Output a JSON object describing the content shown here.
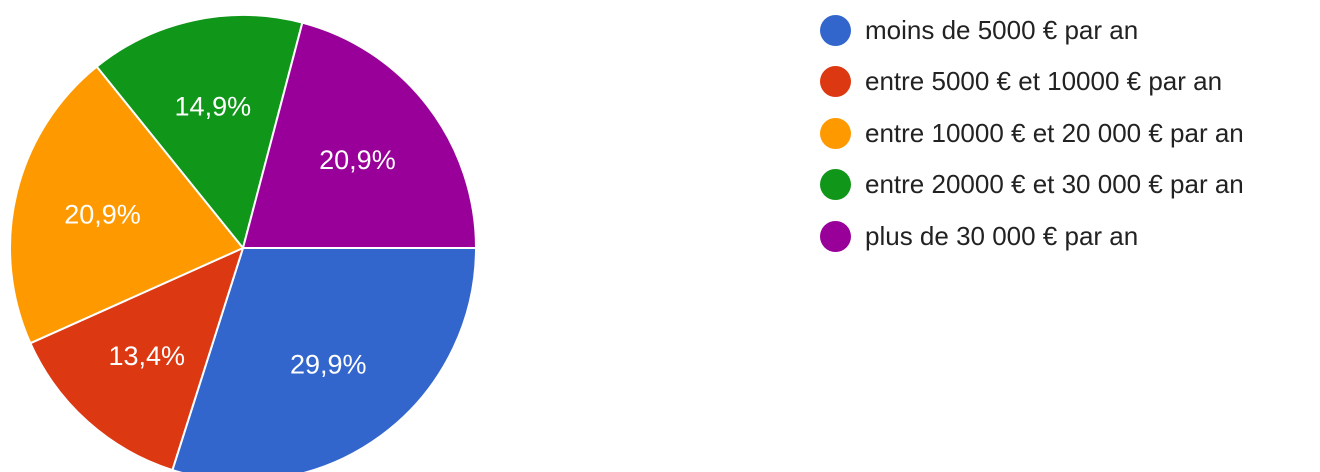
{
  "chart_data": {
    "type": "pie",
    "title": "",
    "start_angle_deg": 90,
    "direction": "clockwise",
    "legend_position": "right",
    "slices": [
      {
        "label": "moins de 5000 € par an",
        "value": 29.9,
        "display": "29,9%",
        "color": "#3366cc"
      },
      {
        "label": "entre 5000 € et 10000 € par an",
        "value": 13.4,
        "display": "13,4%",
        "color": "#dc3912"
      },
      {
        "label": "entre 10000 € et 20 000 € par an",
        "value": 20.9,
        "display": "20,9%",
        "color": "#ff9900"
      },
      {
        "label": "entre 20000 € et 30 000 € par an",
        "value": 14.9,
        "display": "14,9%",
        "color": "#109618"
      },
      {
        "label": "plus de 30 000 € par an",
        "value": 20.9,
        "display": "20,9%",
        "color": "#990099"
      }
    ]
  }
}
